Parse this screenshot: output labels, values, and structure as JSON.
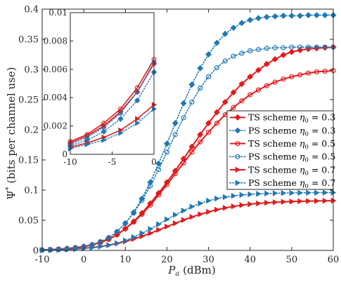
{
  "chart_data": {
    "type": "line",
    "xlabel": "Pa (dBm)",
    "ylabel": "Ψ* (bits per channel use)",
    "xlim": [
      -10,
      60
    ],
    "ylim": [
      0,
      0.4
    ],
    "xticks": [
      "-10",
      "0",
      "10",
      "20",
      "30",
      "40",
      "50",
      "60"
    ],
    "yticks": [
      "0",
      "0.05",
      "0.1",
      "0.15",
      "0.2",
      "0.25",
      "0.3",
      "0.35",
      "0.4"
    ],
    "grid": false,
    "legend_position": "right",
    "series": [
      {
        "name": "TS scheme η0 = 0.3",
        "color": "#e31a1c",
        "line": "solid",
        "marker": "diamond",
        "x": [
          -10,
          -8,
          -6,
          -4,
          -2,
          0,
          2,
          4,
          6,
          8,
          10,
          12,
          14,
          16,
          18,
          20,
          22,
          24,
          26,
          28,
          30,
          32,
          34,
          36,
          38,
          40,
          42,
          44,
          46,
          48,
          50,
          52,
          54,
          56,
          58,
          60
        ],
        "y": [
          0.0008,
          0.0013,
          0.002,
          0.003,
          0.0044,
          0.0064,
          0.009,
          0.013,
          0.0185,
          0.026,
          0.036,
          0.048,
          0.062,
          0.078,
          0.095,
          0.113,
          0.132,
          0.152,
          0.172,
          0.192,
          0.211,
          0.229,
          0.246,
          0.262,
          0.276,
          0.288,
          0.299,
          0.309,
          0.317,
          0.324,
          0.329,
          0.332,
          0.334,
          0.335,
          0.336,
          0.337
        ]
      },
      {
        "name": "PS scheme η0 = 0.3",
        "color": "#1f78b4",
        "line": "dotted",
        "marker": "diamond",
        "x": [
          -10,
          -8,
          -6,
          -4,
          -2,
          0,
          2,
          4,
          6,
          8,
          10,
          12,
          14,
          16,
          18,
          20,
          22,
          24,
          26,
          28,
          30,
          32,
          34,
          36,
          38,
          40,
          42,
          44,
          46,
          48,
          50,
          52,
          54,
          56,
          58,
          60
        ],
        "y": [
          0.0006,
          0.001,
          0.0016,
          0.0025,
          0.0038,
          0.0058,
          0.009,
          0.014,
          0.021,
          0.031,
          0.045,
          0.063,
          0.086,
          0.113,
          0.144,
          0.177,
          0.211,
          0.244,
          0.275,
          0.302,
          0.325,
          0.344,
          0.359,
          0.369,
          0.377,
          0.382,
          0.385,
          0.387,
          0.388,
          0.389,
          0.389,
          0.389,
          0.39,
          0.39,
          0.39,
          0.39
        ]
      },
      {
        "name": "TS scheme η0 = 0.5",
        "color": "#e31a1c",
        "line": "solid",
        "marker": "circle",
        "x": [
          -10,
          -8,
          -6,
          -4,
          -2,
          0,
          2,
          4,
          6,
          8,
          10,
          12,
          14,
          16,
          18,
          20,
          22,
          24,
          26,
          28,
          30,
          32,
          34,
          36,
          38,
          40,
          42,
          44,
          46,
          48,
          50,
          52,
          54,
          56,
          58,
          60
        ],
        "y": [
          0.0009,
          0.0014,
          0.0022,
          0.0032,
          0.0047,
          0.0067,
          0.0093,
          0.013,
          0.0185,
          0.026,
          0.036,
          0.047,
          0.06,
          0.075,
          0.092,
          0.109,
          0.127,
          0.145,
          0.163,
          0.18,
          0.196,
          0.211,
          0.225,
          0.237,
          0.248,
          0.258,
          0.266,
          0.273,
          0.279,
          0.284,
          0.288,
          0.291,
          0.294,
          0.296,
          0.297,
          0.298
        ]
      },
      {
        "name": "PS scheme η0 = 0.5",
        "color": "#1f78b4",
        "line": "dotted",
        "marker": "circle",
        "x": [
          -10,
          -8,
          -6,
          -4,
          -2,
          0,
          2,
          4,
          6,
          8,
          10,
          12,
          14,
          16,
          18,
          20,
          22,
          24,
          26,
          28,
          30,
          32,
          34,
          36,
          38,
          40,
          42,
          44,
          46,
          48,
          50,
          52,
          54,
          56,
          58,
          60
        ],
        "y": [
          0.0007,
          0.0012,
          0.0019,
          0.0029,
          0.0044,
          0.0065,
          0.0097,
          0.0145,
          0.021,
          0.031,
          0.045,
          0.062,
          0.083,
          0.107,
          0.134,
          0.163,
          0.192,
          0.22,
          0.246,
          0.269,
          0.288,
          0.303,
          0.314,
          0.322,
          0.327,
          0.331,
          0.333,
          0.335,
          0.336,
          0.336,
          0.337,
          0.337,
          0.337,
          0.337,
          0.337,
          0.337
        ]
      },
      {
        "name": "TS scheme η0 = 0.7",
        "color": "#e31a1c",
        "line": "solid",
        "marker": "triangle-right",
        "x": [
          -10,
          -8,
          -6,
          -4,
          -2,
          0,
          2,
          4,
          6,
          8,
          10,
          12,
          14,
          16,
          18,
          20,
          22,
          24,
          26,
          28,
          30,
          32,
          34,
          36,
          38,
          40,
          42,
          44,
          46,
          48,
          50,
          52,
          54,
          56,
          58,
          60
        ],
        "y": [
          0.0005,
          0.0008,
          0.0012,
          0.0017,
          0.0025,
          0.0035,
          0.0048,
          0.0065,
          0.0087,
          0.0115,
          0.015,
          0.019,
          0.0235,
          0.0285,
          0.034,
          0.0395,
          0.045,
          0.0505,
          0.0555,
          0.06,
          0.064,
          0.0675,
          0.0705,
          0.073,
          0.075,
          0.0767,
          0.078,
          0.079,
          0.0798,
          0.0805,
          0.081,
          0.0815,
          0.0818,
          0.082,
          0.0822,
          0.0824
        ]
      },
      {
        "name": "PS scheme η0 = 0.7",
        "color": "#1f78b4",
        "line": "dotted",
        "marker": "triangle-right",
        "x": [
          -10,
          -8,
          -6,
          -4,
          -2,
          0,
          2,
          4,
          6,
          8,
          10,
          12,
          14,
          16,
          18,
          20,
          22,
          24,
          26,
          28,
          30,
          32,
          34,
          36,
          38,
          40,
          42,
          44,
          46,
          48,
          50,
          52,
          54,
          56,
          58,
          60
        ],
        "y": [
          0.0004,
          0.0007,
          0.001,
          0.0015,
          0.0022,
          0.0032,
          0.0045,
          0.0063,
          0.0087,
          0.012,
          0.0165,
          0.022,
          0.0285,
          0.0355,
          0.0435,
          0.0515,
          0.059,
          0.066,
          0.0725,
          0.078,
          0.0825,
          0.086,
          0.0885,
          0.0905,
          0.092,
          0.093,
          0.0938,
          0.0944,
          0.0948,
          0.0951,
          0.0953,
          0.0955,
          0.0956,
          0.0957,
          0.0958,
          0.0958
        ]
      }
    ],
    "inset": {
      "xlim": [
        -10,
        0
      ],
      "ylim": [
        0,
        0.01
      ],
      "xticks": [
        "-10",
        "-5",
        "0"
      ],
      "yticks": [
        "0",
        "0.002",
        "0.004",
        "0.006",
        "0.008",
        "0.01"
      ],
      "x": [
        -10,
        -8,
        -6,
        -4,
        -2,
        0
      ],
      "series_y": [
        [
          0.0008,
          0.0013,
          0.002,
          0.003,
          0.0044,
          0.0064
        ],
        [
          0.0006,
          0.001,
          0.0016,
          0.0025,
          0.0038,
          0.0058
        ],
        [
          0.0009,
          0.0014,
          0.0022,
          0.0032,
          0.0047,
          0.0067
        ],
        [
          0.0007,
          0.0012,
          0.0019,
          0.0029,
          0.0044,
          0.0065
        ],
        [
          0.0005,
          0.0008,
          0.0012,
          0.0017,
          0.0025,
          0.0035
        ],
        [
          0.0004,
          0.0007,
          0.001,
          0.0015,
          0.0022,
          0.0032
        ]
      ]
    }
  }
}
